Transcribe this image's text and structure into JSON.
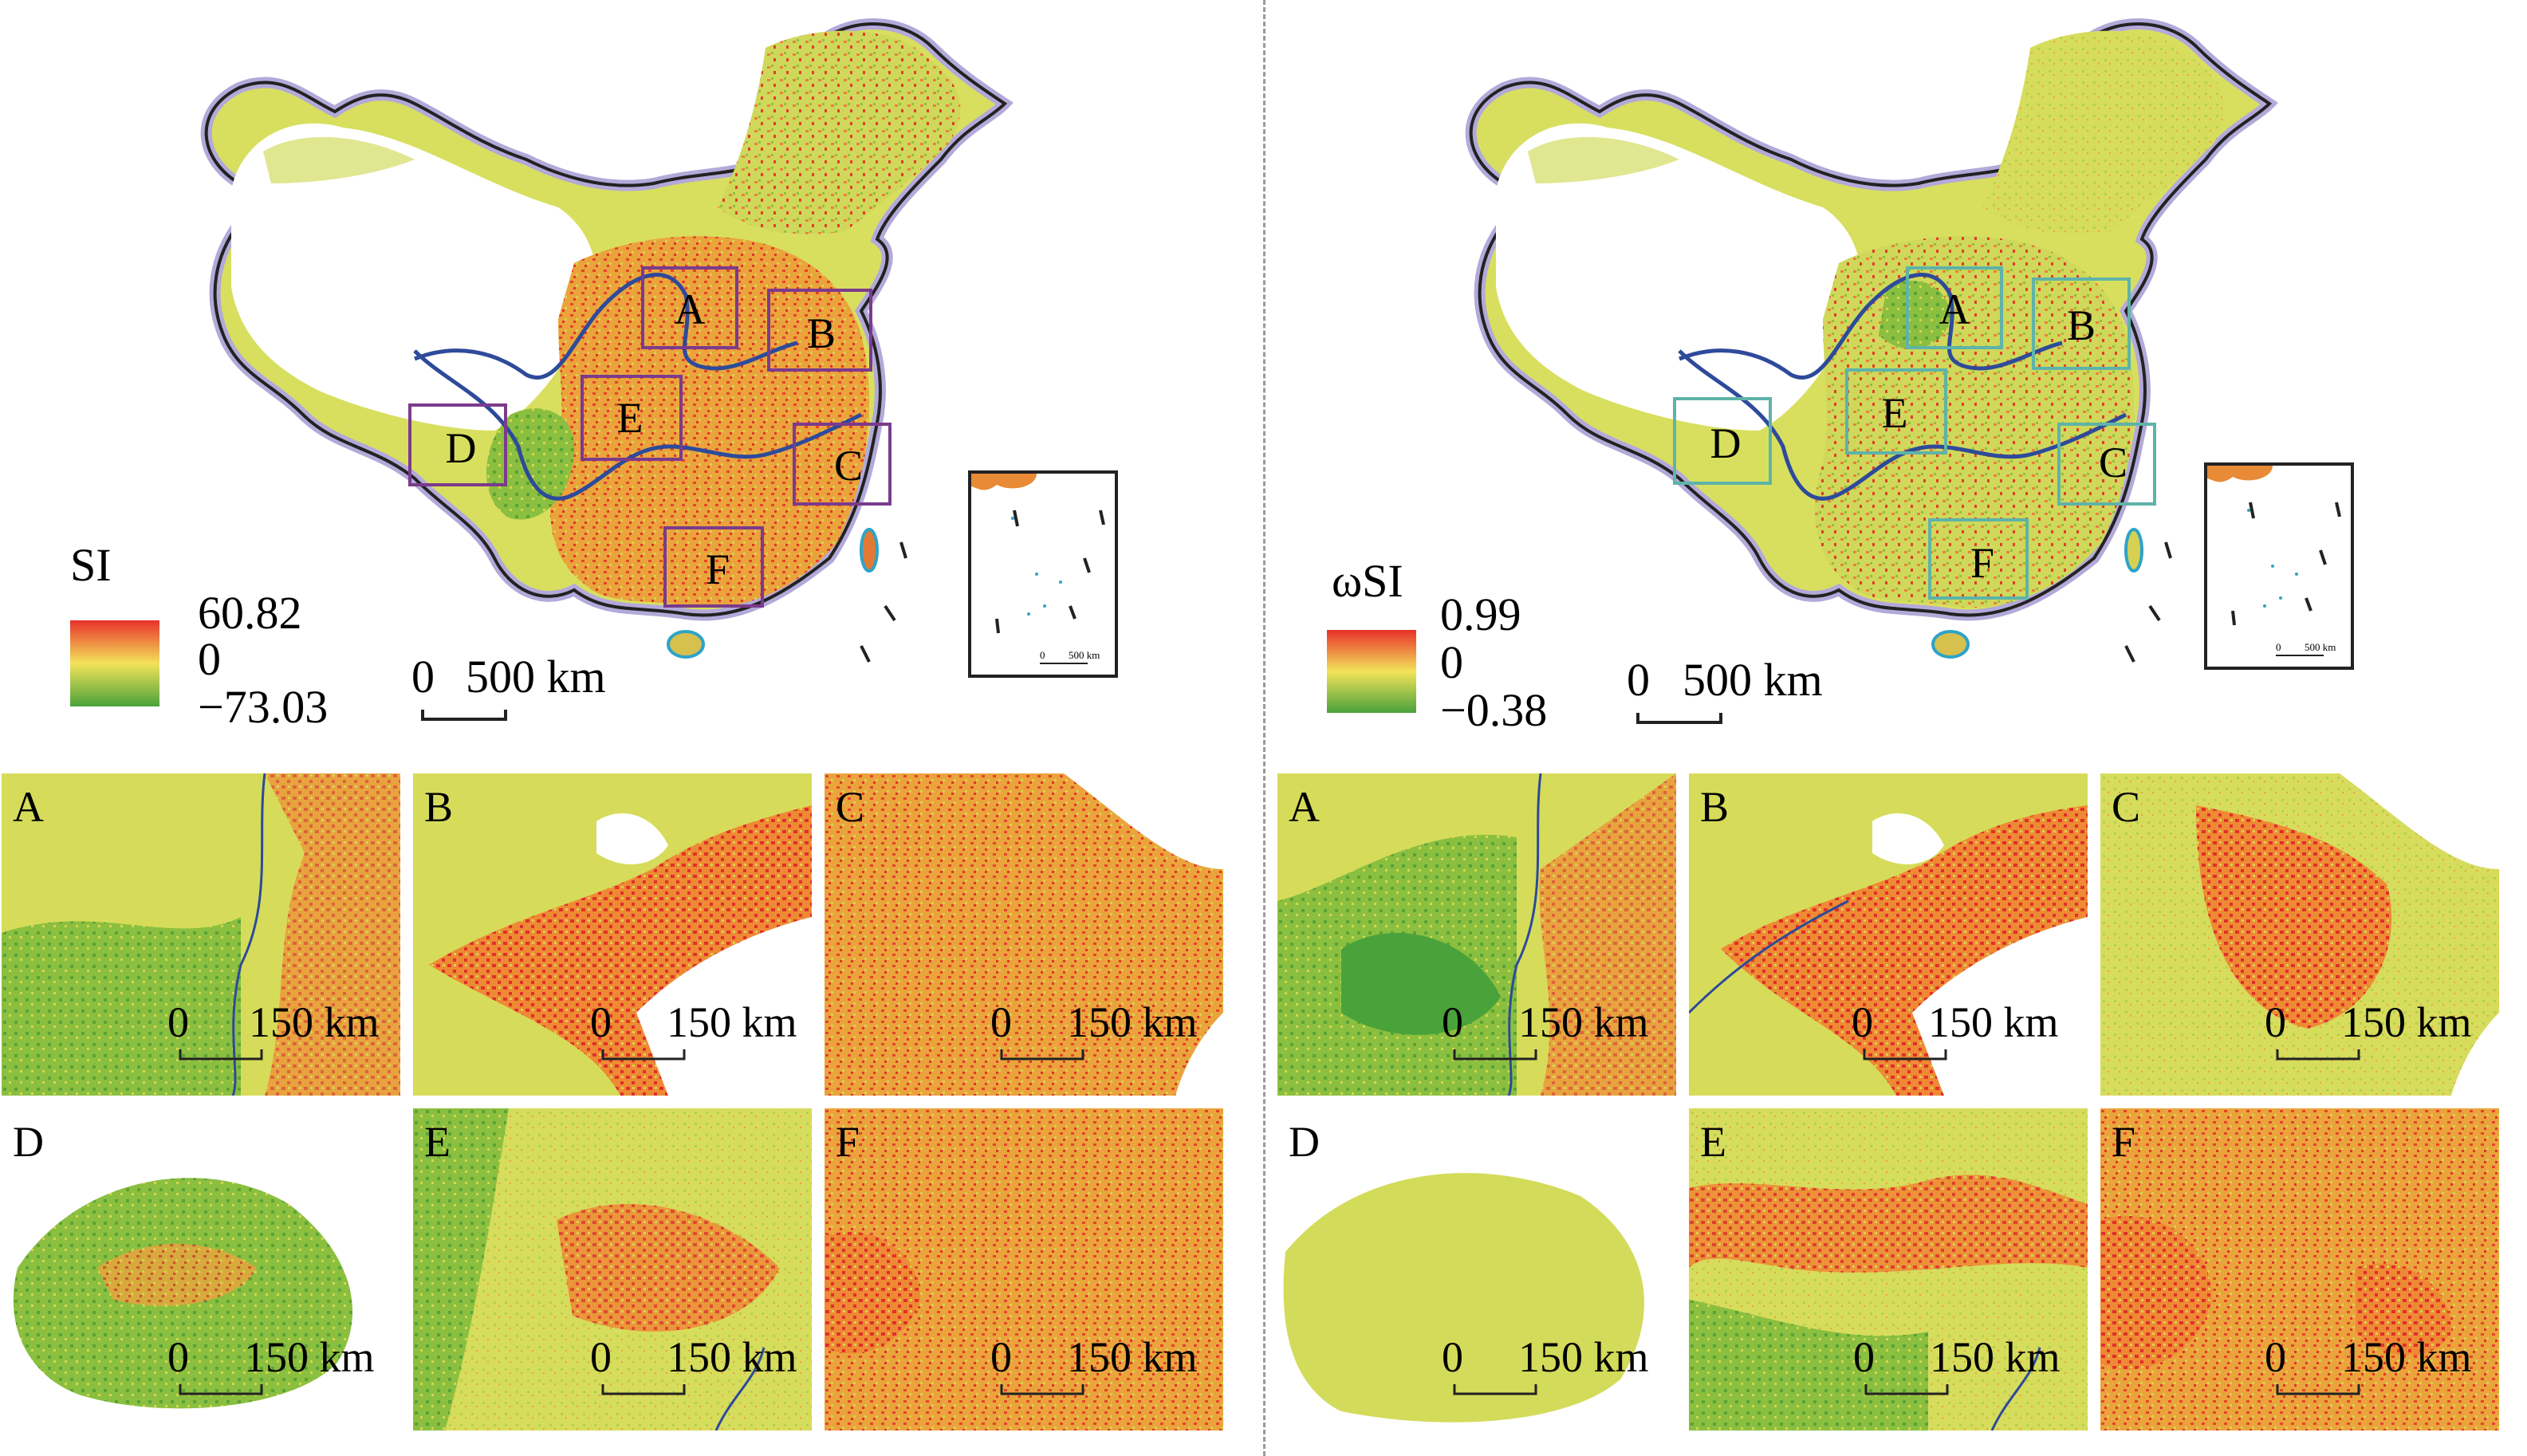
{
  "left": {
    "legend": {
      "title": "SI",
      "max": "60.82",
      "mid": "0",
      "min": "−73.03"
    },
    "scale_label": {
      "zero": "0",
      "dist": "500 km"
    },
    "region_labels": [
      "A",
      "B",
      "C",
      "D",
      "E",
      "F"
    ],
    "box_color": "#7b3b8c",
    "insets": [
      {
        "label": "A",
        "zero": "0",
        "dist": "150 km"
      },
      {
        "label": "B",
        "zero": "0",
        "dist": "150 km"
      },
      {
        "label": "C",
        "zero": "0",
        "dist": "150 km"
      },
      {
        "label": "D",
        "zero": "0",
        "dist": "150 km"
      },
      {
        "label": "E",
        "zero": "0",
        "dist": "150 km"
      },
      {
        "label": "F",
        "zero": "0",
        "dist": "150 km"
      }
    ]
  },
  "right": {
    "legend": {
      "title": "ωSI",
      "max": "0.99",
      "mid": "0",
      "min": "−0.38"
    },
    "scale_label": {
      "zero": "0",
      "dist": "500 km"
    },
    "region_labels": [
      "A",
      "B",
      "C",
      "D",
      "E",
      "F"
    ],
    "box_color": "#5fb3a8",
    "insets": [
      {
        "label": "A",
        "zero": "0",
        "dist": "150 km"
      },
      {
        "label": "B",
        "zero": "0",
        "dist": "150 km"
      },
      {
        "label": "C",
        "zero": "0",
        "dist": "150 km"
      },
      {
        "label": "D",
        "zero": "0",
        "dist": "150 km"
      },
      {
        "label": "E",
        "zero": "0",
        "dist": "150 km"
      },
      {
        "label": "F",
        "zero": "0",
        "dist": "150 km"
      }
    ]
  },
  "mini_map": {
    "zero": "0",
    "dist": "500 km"
  },
  "colors": {
    "ramp_high": "#e8312a",
    "ramp_mid": "#f3e35a",
    "ramp_low": "#4aa23a",
    "river": "#2e4a9a",
    "coast": "#2ea3c8",
    "border_halo": "#b3a9d9"
  }
}
